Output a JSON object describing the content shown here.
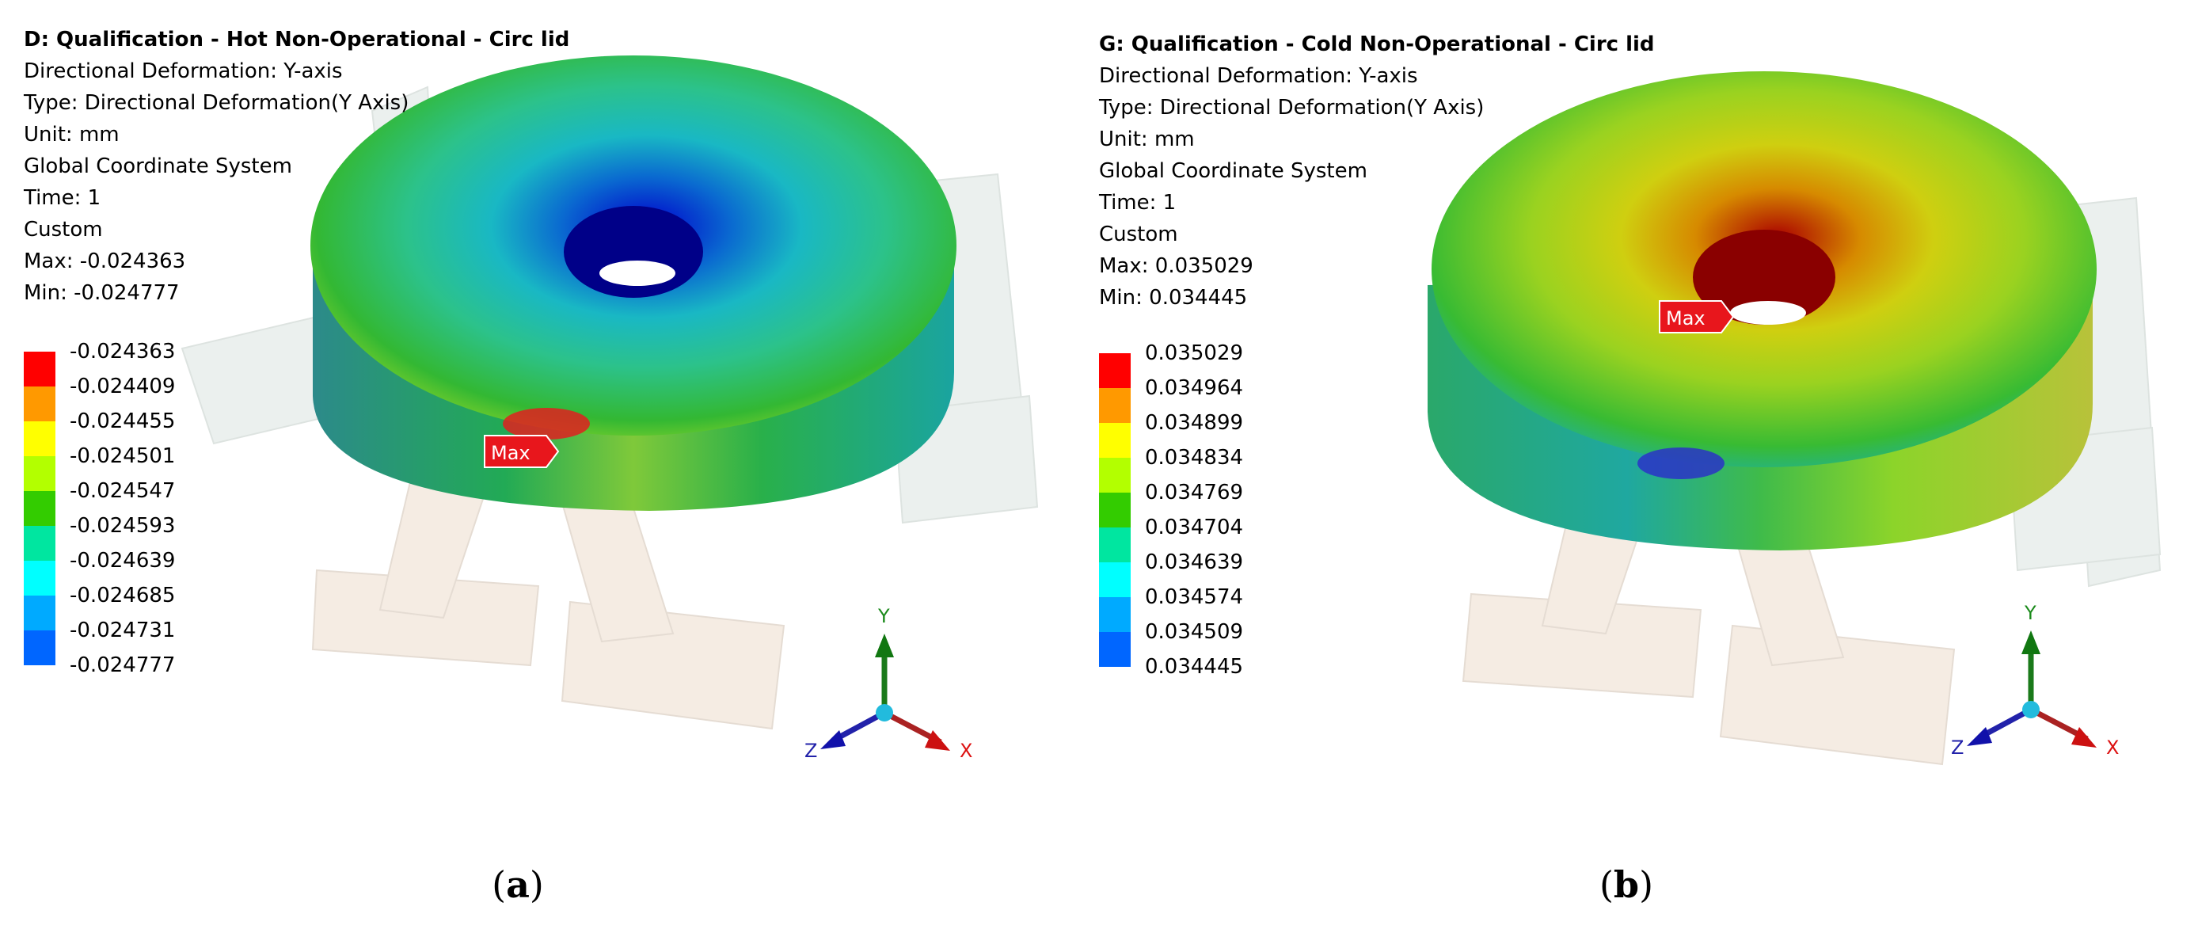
{
  "panels": [
    {
      "info": {
        "title": "D: Qualification - Hot Non-Operational - Circ lid",
        "lines": [
          "Directional Deformation: Y-axis",
          "Type: Directional Deformation(Y Axis)",
          "Unit: mm",
          "Global Coordinate System",
          "Time: 1",
          "Custom",
          "Max: -0.024363",
          "Min: -0.024777"
        ]
      },
      "legend": [
        "-0.024363",
        "-0.024409",
        "-0.024455",
        "-0.024501",
        "-0.024547",
        "-0.024593",
        "-0.024639",
        "-0.024685",
        "-0.024731",
        "-0.024777"
      ],
      "max_label": "Max",
      "axes": {
        "y": "Y",
        "x": "X",
        "z": "Z"
      },
      "caption": {
        "open": "(",
        "letter": "a",
        "close": ")"
      }
    },
    {
      "info": {
        "title": "G: Qualification - Cold Non-Operational - Circ lid",
        "lines": [
          "Directional Deformation: Y-axis",
          "Type: Directional Deformation(Y Axis)",
          "Unit: mm",
          "Global Coordinate System",
          "Time: 1",
          "Custom",
          "Max: 0.035029",
          "Min: 0.034445"
        ]
      },
      "legend": [
        "0.035029",
        "0.034964",
        "0.034899",
        "0.034834",
        "0.034769",
        "0.034704",
        "0.034639",
        "0.034574",
        "0.034509",
        "0.034445"
      ],
      "max_label": "Max",
      "axes": {
        "y": "Y",
        "x": "X",
        "z": "Z"
      },
      "caption": {
        "open": "(",
        "letter": "b",
        "close": ")"
      }
    }
  ],
  "legend_colors": [
    "#ff0000",
    "#ff9900",
    "#ffff00",
    "#b3ff00",
    "#33cc00",
    "#00e6a0",
    "#00ffff",
    "#00aaff",
    "#0066ff",
    "#0000ff"
  ]
}
